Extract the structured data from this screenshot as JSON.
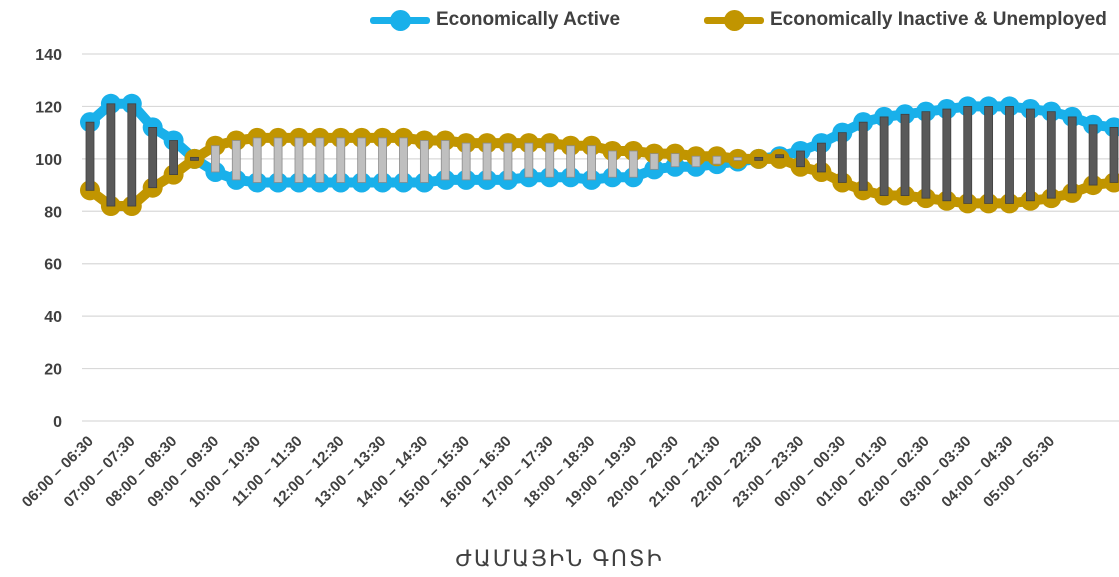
{
  "chart_data": {
    "type": "line",
    "title": "",
    "xlabel": "ԺԱՄԱՅԻՆ ԳՈՏԻ",
    "ylabel": "",
    "ylim": [
      0,
      140
    ],
    "yticks": [
      0,
      20,
      40,
      60,
      80,
      100,
      120,
      140
    ],
    "grid": true,
    "legend_position": "top-right",
    "category_labels": [
      "06:00 – 06:30",
      "07:00 – 07:30",
      "08:00 – 08:30",
      "09:00 – 09:30",
      "10:00 – 10:30",
      "11:00 – 11:30",
      "12:00 – 12:30",
      "13:00 – 13:30",
      "14:00 – 14:30",
      "15:00 – 15:30",
      "16:00 – 16:30",
      "17:00 – 17:30",
      "18:00 – 18:30",
      "19:00 – 19:30",
      "20:00 – 20:30",
      "21:00 – 21:30",
      "22:00 – 22:30",
      "23:00 – 23:30",
      "00:00 – 00:30",
      "01:00 – 01:30",
      "02:00 – 02:30",
      "03:00 – 03:30",
      "04:00 – 04:30",
      "05:00 – 05:30"
    ],
    "series": [
      {
        "name": "Economically Active",
        "color": "#19b0ea",
        "values": [
          114,
          121,
          121,
          112,
          107,
          100,
          95,
          92,
          91,
          91,
          91,
          91,
          91,
          91,
          91,
          91,
          91,
          92,
          92,
          92,
          92,
          93,
          93,
          93,
          92,
          93,
          93,
          96,
          97,
          97,
          98,
          99,
          100,
          101,
          103,
          106,
          110,
          114,
          116,
          117,
          118,
          119,
          120,
          120,
          120,
          119,
          118,
          116,
          113,
          112
        ]
      },
      {
        "name": "Economically Inactive & Unemployed",
        "color": "#c19500",
        "values": [
          88,
          82,
          82,
          89,
          94,
          100,
          105,
          107,
          108,
          108,
          108,
          108,
          108,
          108,
          108,
          108,
          107,
          107,
          106,
          106,
          106,
          106,
          106,
          105,
          105,
          103,
          103,
          102,
          102,
          101,
          101,
          100,
          100,
          100,
          97,
          95,
          91,
          88,
          86,
          86,
          85,
          84,
          83,
          83,
          83,
          84,
          85,
          87,
          90,
          91
        ]
      }
    ],
    "drop_line_colors": {
      "up": "#595959",
      "down": "#bfbfbf"
    }
  },
  "legend": {
    "active_label": "Economically Active",
    "inactive_label": "Economically Inactive & Unemployed",
    "active_icon": "line-with-dot-icon",
    "inactive_icon": "line-with-dot-icon"
  }
}
